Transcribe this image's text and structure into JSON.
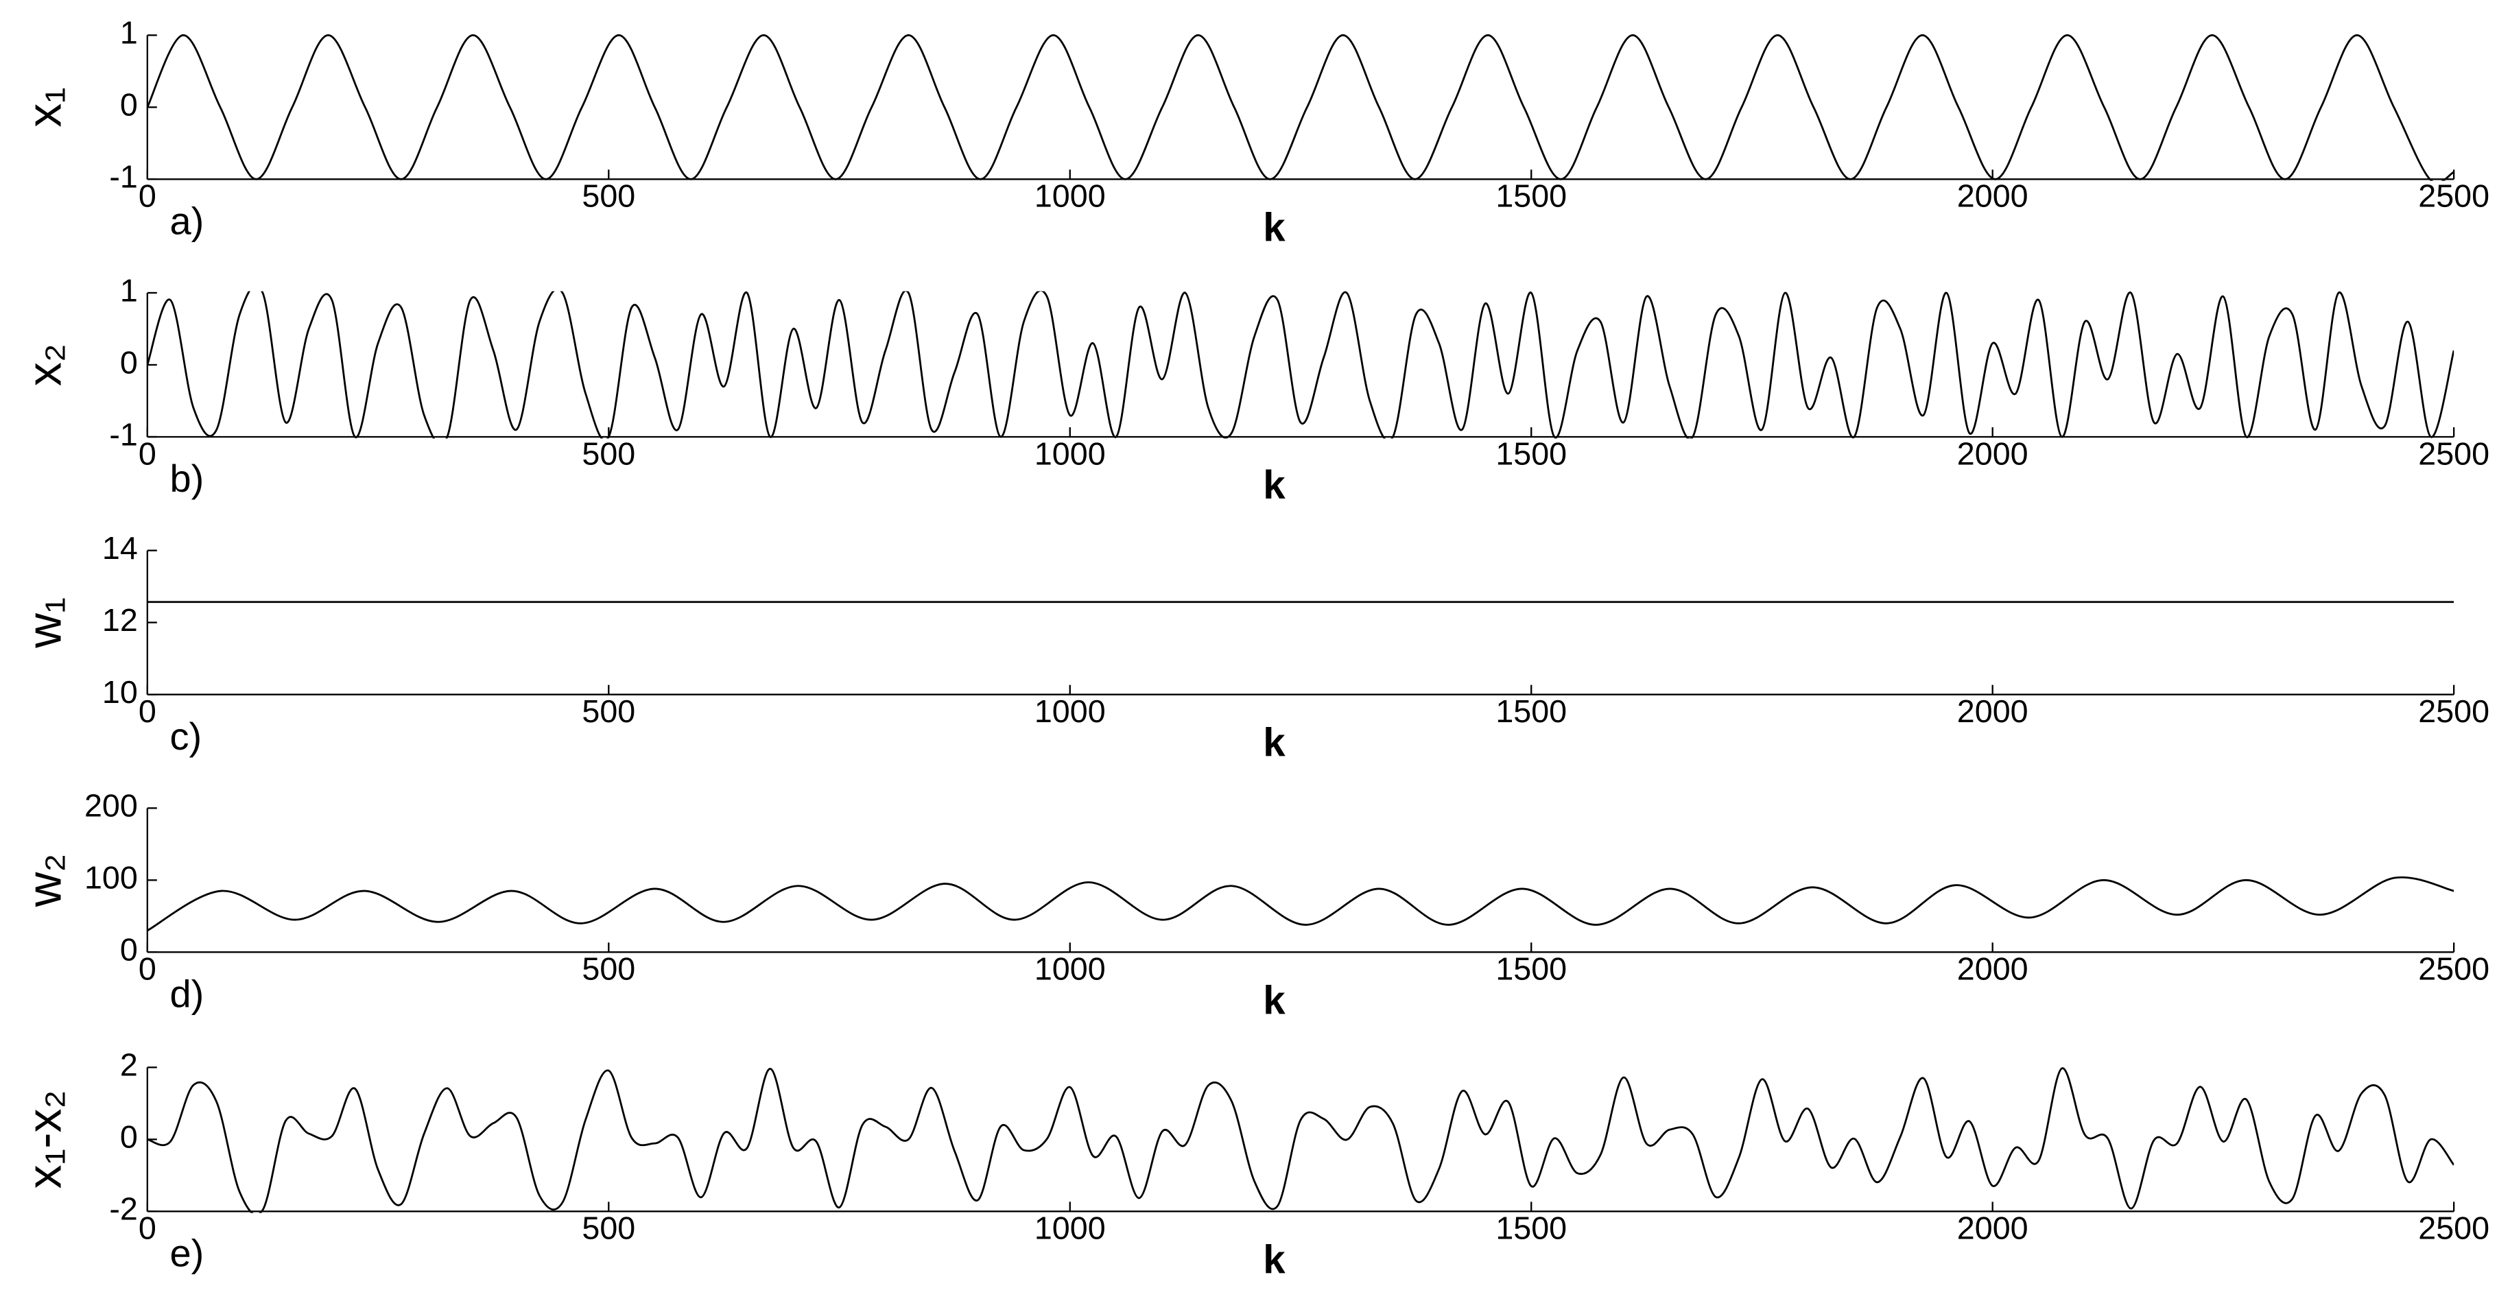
{
  "chart_data": [
    {
      "type": "line",
      "ylabel": "x₁",
      "xlabel": "k",
      "panel_label": "a)",
      "x": [
        0,
        39,
        79,
        118,
        157,
        196,
        236,
        275,
        314,
        353,
        393,
        432,
        471,
        511,
        550,
        589,
        628,
        668,
        707,
        746,
        785,
        825,
        864,
        903,
        942,
        982,
        1021,
        1060,
        1100,
        1139,
        1178,
        1217,
        1257,
        1296,
        1335,
        1374,
        1414,
        1453,
        1492,
        1532,
        1571,
        1610,
        1649,
        1689,
        1728,
        1767,
        1806,
        1846,
        1885,
        1924,
        1963,
        2003,
        2042,
        2081,
        2121,
        2160,
        2199,
        2238,
        2278,
        2317,
        2356,
        2395,
        2435,
        2474,
        2500
      ],
      "series": [
        {
          "color": "#000000",
          "values": [
            0,
            1,
            0,
            -1,
            0,
            1,
            0,
            -1,
            0,
            1,
            0,
            -1,
            0,
            1,
            0,
            -1,
            0,
            1,
            0,
            -1,
            0,
            1,
            0,
            -1,
            0,
            1,
            0,
            -1,
            0,
            1,
            0,
            -1,
            0,
            1,
            0,
            -1,
            0,
            1,
            0,
            -1,
            0,
            1,
            0,
            -1,
            0,
            1,
            0,
            -1,
            0,
            1,
            0,
            -1,
            0,
            1,
            0,
            -1,
            0,
            1,
            0,
            -1,
            0,
            1,
            0,
            -1,
            -0.9
          ]
        }
      ],
      "xlim": [
        0,
        2500
      ],
      "xticks": [
        0,
        500,
        1000,
        1500,
        2000,
        2500
      ],
      "ylim": [
        -1,
        1
      ],
      "yticks": [
        -1,
        0,
        1
      ]
    },
    {
      "type": "line",
      "ylabel": "x₂",
      "xlabel": "k",
      "panel_label": "b)",
      "x": [
        0,
        25,
        50,
        75,
        100,
        125,
        150,
        175,
        200,
        225,
        250,
        275,
        300,
        325,
        350,
        375,
        400,
        425,
        450,
        475,
        500,
        525,
        550,
        575,
        600,
        625,
        650,
        675,
        700,
        725,
        750,
        775,
        800,
        825,
        850,
        875,
        900,
        925,
        950,
        975,
        1000,
        1025,
        1050,
        1075,
        1100,
        1125,
        1150,
        1175,
        1200,
        1225,
        1250,
        1275,
        1300,
        1325,
        1350,
        1375,
        1400,
        1425,
        1450,
        1475,
        1500,
        1525,
        1550,
        1575,
        1600,
        1625,
        1650,
        1675,
        1700,
        1725,
        1750,
        1775,
        1800,
        1825,
        1850,
        1875,
        1900,
        1925,
        1950,
        1975,
        2000,
        2025,
        2050,
        2075,
        2100,
        2125,
        2150,
        2175,
        2200,
        2225,
        2250,
        2275,
        2300,
        2325,
        2350,
        2375,
        2400,
        2425,
        2450,
        2475,
        2500
      ],
      "series": [
        {
          "color": "#000000",
          "values": [
            0,
            0.9,
            -0.6,
            -0.9,
            0.7,
            1,
            -0.8,
            0.5,
            0.9,
            -1,
            0.3,
            0.8,
            -0.7,
            -1,
            0.9,
            0.2,
            -0.9,
            0.6,
            1,
            -0.4,
            -1,
            0.8,
            0.1,
            -0.9,
            0.7,
            -0.3,
            1,
            -1,
            0.5,
            -0.6,
            0.9,
            -0.8,
            0.2,
            1,
            -0.9,
            -0.1,
            0.7,
            -1,
            0.6,
            0.95,
            -0.7,
            0.3,
            -1,
            0.8,
            -0.2,
            1,
            -0.6,
            -0.95,
            0.4,
            0.9,
            -0.8,
            0.1,
            1,
            -0.5,
            -1,
            0.7,
            0.3,
            -0.9,
            0.85,
            -0.4,
            1,
            -1,
            0.2,
            0.6,
            -0.8,
            0.95,
            -0.3,
            -1,
            0.7,
            0.4,
            -0.9,
            1,
            -0.6,
            0.1,
            -1,
            0.8,
            0.5,
            -0.7,
            1,
            -0.95,
            0.3,
            -0.4,
            0.9,
            -1,
            0.6,
            -0.2,
            1,
            -0.8,
            0.15,
            -0.6,
            0.95,
            -1,
            0.4,
            0.7,
            -0.9,
            1,
            -0.3,
            -0.85,
            0.6,
            -1,
            0.2
          ]
        }
      ],
      "xlim": [
        0,
        2500
      ],
      "xticks": [
        0,
        500,
        1000,
        1500,
        2000,
        2500
      ],
      "ylim": [
        -1,
        1
      ],
      "yticks": [
        -1,
        0,
        1
      ]
    },
    {
      "type": "line",
      "ylabel": "w₁",
      "xlabel": "k",
      "panel_label": "c)",
      "x": [
        0,
        2500
      ],
      "series": [
        {
          "color": "#000000",
          "values": [
            12.57,
            12.57
          ]
        }
      ],
      "xlim": [
        0,
        2500
      ],
      "xticks": [
        0,
        500,
        1000,
        1500,
        2000,
        2500
      ],
      "ylim": [
        10,
        14
      ],
      "yticks": [
        10,
        12,
        14
      ]
    },
    {
      "type": "line",
      "ylabel": "w₂",
      "xlabel": "k",
      "panel_label": "d)",
      "x": [
        0,
        80,
        160,
        235,
        315,
        395,
        470,
        550,
        625,
        705,
        785,
        865,
        940,
        1020,
        1100,
        1175,
        1255,
        1335,
        1410,
        1490,
        1570,
        1650,
        1725,
        1805,
        1885,
        1960,
        2040,
        2120,
        2200,
        2275,
        2355,
        2435,
        2500
      ],
      "series": [
        {
          "color": "#000000",
          "values": [
            30,
            85,
            45,
            85,
            42,
            85,
            40,
            88,
            42,
            92,
            45,
            95,
            45,
            97,
            45,
            92,
            38,
            88,
            38,
            88,
            38,
            88,
            40,
            90,
            40,
            93,
            48,
            100,
            52,
            100,
            52,
            103,
            85
          ]
        }
      ],
      "xlim": [
        0,
        2500
      ],
      "xticks": [
        0,
        500,
        1000,
        1500,
        2000,
        2500
      ],
      "ylim": [
        0,
        200
      ],
      "yticks": [
        0,
        100,
        200
      ]
    },
    {
      "type": "line",
      "ylabel": "x₁-x₂",
      "xlabel": "k",
      "panel_label": "e)",
      "x": [
        0,
        25,
        50,
        75,
        100,
        125,
        150,
        175,
        200,
        225,
        250,
        275,
        300,
        325,
        350,
        375,
        400,
        425,
        450,
        475,
        500,
        525,
        550,
        575,
        600,
        625,
        650,
        675,
        700,
        725,
        750,
        775,
        800,
        825,
        850,
        875,
        900,
        925,
        950,
        975,
        1000,
        1025,
        1050,
        1075,
        1100,
        1125,
        1150,
        1175,
        1200,
        1225,
        1250,
        1275,
        1300,
        1325,
        1350,
        1375,
        1400,
        1425,
        1450,
        1475,
        1500,
        1525,
        1550,
        1575,
        1600,
        1625,
        1650,
        1675,
        1700,
        1725,
        1750,
        1775,
        1800,
        1825,
        1850,
        1875,
        1900,
        1925,
        1950,
        1975,
        2000,
        2025,
        2050,
        2075,
        2100,
        2125,
        2150,
        2175,
        2200,
        2225,
        2250,
        2275,
        2300,
        2325,
        2350,
        2375,
        2400,
        2425,
        2450,
        2475,
        2500
      ],
      "series": [
        {
          "color": "#000000",
          "values": [
            0,
            -0.06,
            1.51,
            1.04,
            -1.46,
            -1.96,
            0.52,
            0.16,
            0.09,
            1.41,
            -0.84,
            -1.8,
            0.16,
            1.42,
            0.09,
            0.45,
            0.61,
            -1.56,
            -1.75,
            0.55,
            1.91,
            0.04,
            -0.11,
            0.05,
            -1.61,
            0.17,
            -0.24,
            1.96,
            -0.23,
            -0.06,
            -1.89,
            0.4,
            0.35,
            0,
            1.43,
            -0.33,
            -1.69,
            0.36,
            -0.3,
            0.01,
            1.45,
            -0.46,
            0.08,
            -1.63,
            0.22,
            -0.15,
            1.5,
            1.07,
            -1.17,
            -1.85,
            0.54,
            0.57,
            -0.01,
            0.9,
            0.44,
            -1.7,
            -0.82,
            1.34,
            0.14,
            1.04,
            -1.3,
            0.03,
            -0.94,
            -0.43,
            1.72,
            -0.12,
            0.27,
            0.14,
            -1.6,
            -0.51,
            1.67,
            -0.05,
            0.85,
            -0.78,
            0.02,
            -1.19,
            0.07,
            1.7,
            -0.49,
            0.5,
            -1.29,
            -0.23,
            -0.59,
            1.97,
            0.13,
            0.02,
            -1.92,
            -0.02,
            -0.11,
            1.46,
            -0.06,
            1.11,
            -1.18,
            -1.65,
            0.66,
            -0.32,
            1.28,
            1.23,
            -1.17,
            0,
            -0.71
          ]
        }
      ],
      "xlim": [
        0,
        2500
      ],
      "xticks": [
        0,
        500,
        1000,
        1500,
        2000,
        2500
      ],
      "ylim": [
        -2,
        2
      ],
      "yticks": [
        -2,
        0,
        2
      ]
    }
  ]
}
